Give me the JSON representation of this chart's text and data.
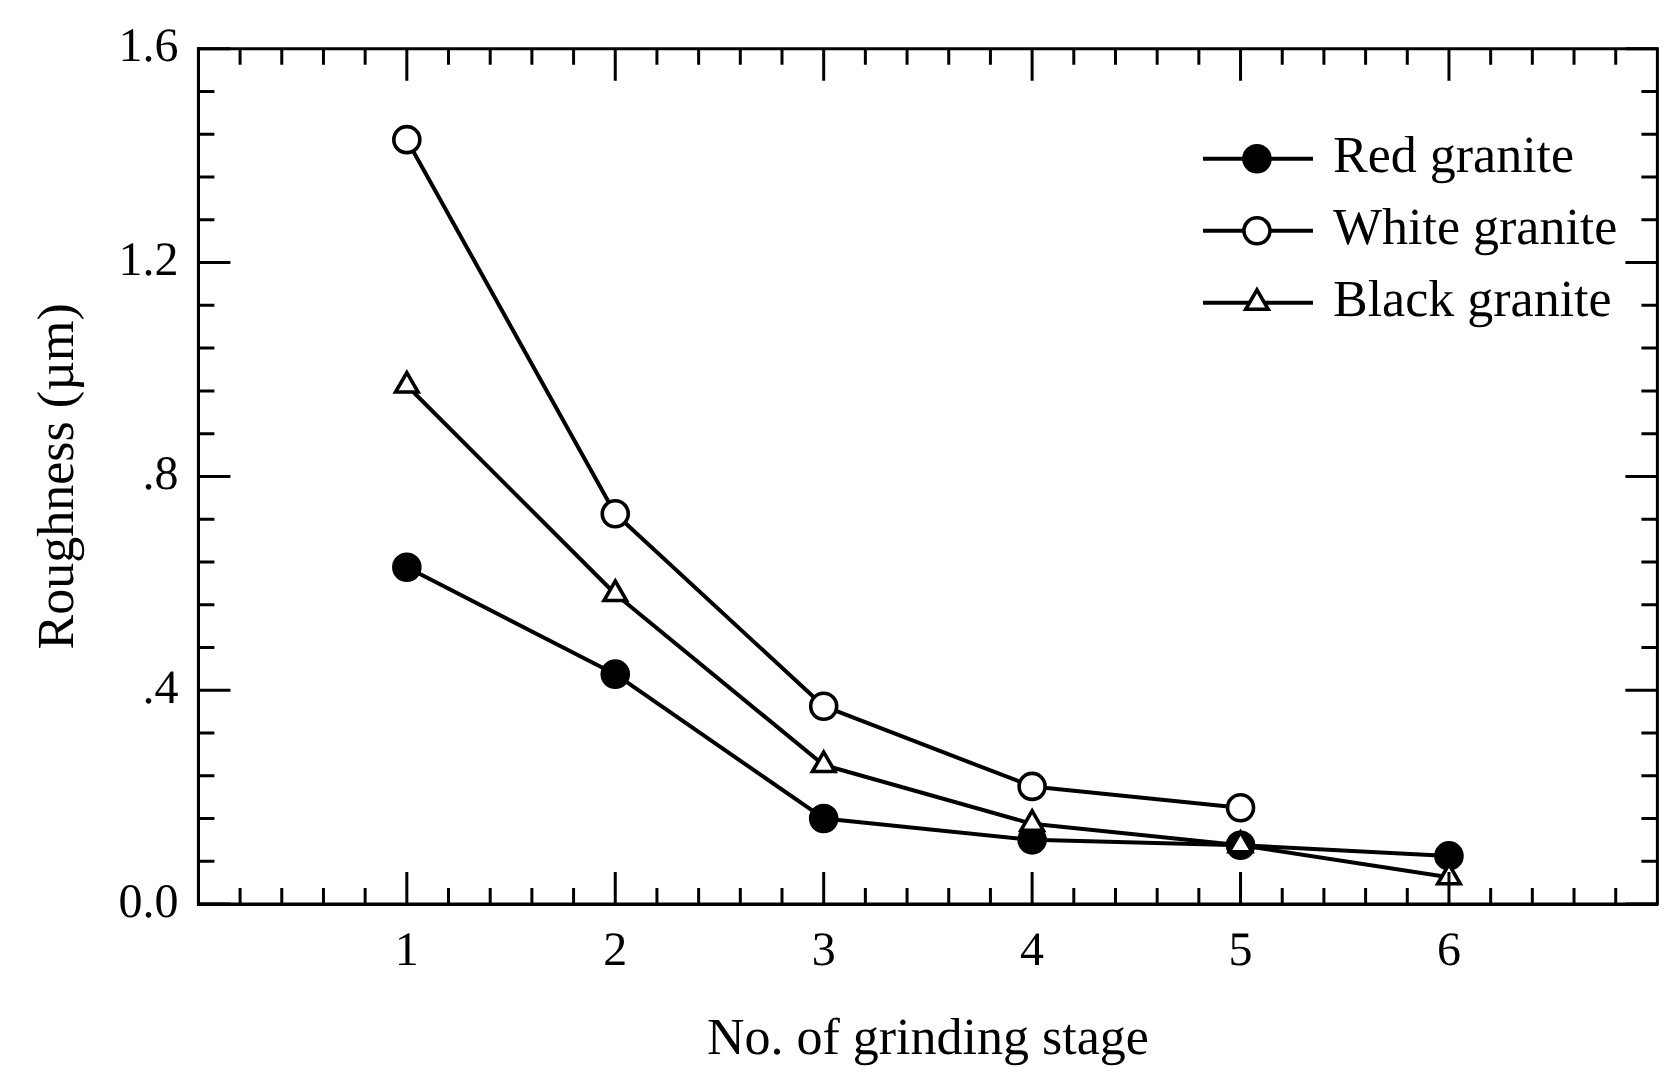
{
  "chart_data": {
    "type": "line",
    "xlabel": "No. of grinding stage",
    "ylabel": "Roughness (µm)",
    "x": [
      1,
      2,
      3,
      4,
      5,
      6
    ],
    "series": [
      {
        "name": "Red granite",
        "color": "#000000",
        "marker": "circle",
        "values": [
          0.63,
          0.43,
          0.16,
          0.12,
          0.11,
          0.09
        ]
      },
      {
        "name": "White granite",
        "color": "#000000",
        "marker": "circle",
        "values": [
          1.43,
          0.73,
          0.37,
          0.22,
          0.18,
          null
        ]
      },
      {
        "name": "Black granite",
        "color": "#000000",
        "marker": "triangle",
        "values": [
          0.97,
          0.58,
          0.26,
          0.15,
          0.11,
          0.05
        ]
      }
    ],
    "xlim": [
      0,
      7
    ],
    "xticks": [
      {
        "value": 0.2,
        "label": null
      },
      {
        "value": 0.4,
        "label": null
      },
      {
        "value": 0.6,
        "label": null
      },
      {
        "value": 0.8,
        "label": null
      },
      1,
      {
        "value": 1.2,
        "label": null
      },
      {
        "value": 1.4,
        "label": null
      },
      {
        "value": 1.6,
        "label": null
      },
      {
        "value": 1.8,
        "label": null
      },
      2,
      {
        "value": 2.2,
        "label": null
      },
      {
        "value": 2.4,
        "label": null
      },
      {
        "value": 2.6,
        "label": null
      },
      {
        "value": 2.8,
        "label": null
      },
      3,
      {
        "value": 3.2,
        "label": null
      },
      {
        "value": 3.4,
        "label": null
      },
      {
        "value": 3.6,
        "label": null
      },
      {
        "value": 3.8,
        "label": null
      },
      4,
      {
        "value": 4.2,
        "label": null
      },
      {
        "value": 4.4,
        "label": null
      },
      {
        "value": 4.6,
        "label": null
      },
      {
        "value": 4.8,
        "label": null
      },
      5,
      {
        "value": 5.2,
        "label": null
      },
      {
        "value": 5.4,
        "label": null
      },
      {
        "value": 5.6,
        "label": null
      },
      {
        "value": 5.8,
        "label": null
      },
      6,
      {
        "value": 6.2,
        "label": null
      },
      {
        "value": 6.4,
        "label": null
      },
      {
        "value": 6.6,
        "label": null
      },
      {
        "value": 6.8,
        "label": null
      }
    ],
    "ylim": [
      0,
      1.6
    ],
    "yticks": [
      {
        "value": 0,
        "label": "0.0"
      },
      {
        "value": 0.08,
        "label": null
      },
      {
        "value": 0.16,
        "label": null
      },
      {
        "value": 0.24,
        "label": null
      },
      {
        "value": 0.32,
        "label": null
      },
      {
        "value": 0.4,
        "label": ".4"
      },
      {
        "value": 0.48,
        "label": null
      },
      {
        "value": 0.56,
        "label": null
      },
      {
        "value": 0.64,
        "label": null
      },
      {
        "value": 0.72,
        "label": null
      },
      {
        "value": 0.8,
        "label": ".8"
      },
      {
        "value": 0.88,
        "label": null
      },
      {
        "value": 0.96,
        "label": null
      },
      {
        "value": 1.04,
        "label": null
      },
      {
        "value": 1.12,
        "label": null
      },
      {
        "value": 1.2,
        "label": "1.2"
      },
      {
        "value": 1.28,
        "label": null
      },
      {
        "value": 1.36,
        "label": null
      },
      {
        "value": 1.44,
        "label": null
      },
      {
        "value": 1.52,
        "label": null
      },
      {
        "value": 1.6,
        "label": "1.6"
      }
    ],
    "grid": false,
    "legend": "top right",
    "line_style": "solid"
  }
}
